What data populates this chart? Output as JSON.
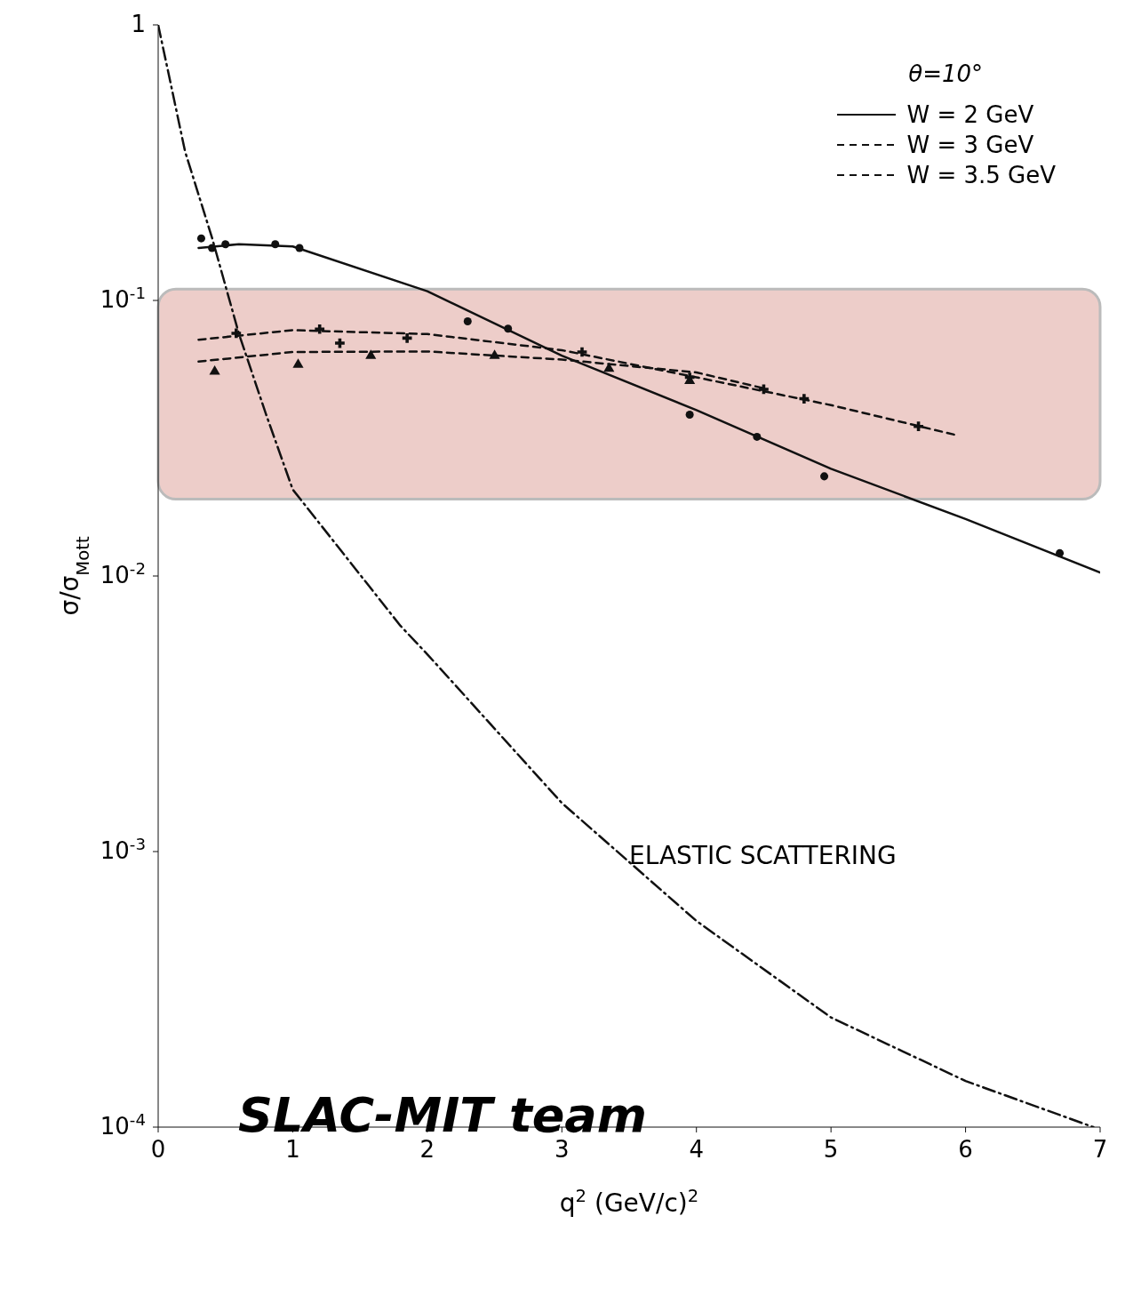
{
  "chart_data": {
    "type": "line",
    "xlabel": "q$^{2}$ (GeV/c)$^{2}$",
    "ylabel": "σ/σ$_{Mott}$",
    "legend_title": "θ=10°",
    "log": "y",
    "xlim": [
      0,
      7
    ],
    "xticks": [
      0,
      1,
      2,
      3,
      4,
      5,
      6,
      7
    ],
    "ylim": [
      0.0001,
      1
    ],
    "yticks": [
      {
        "value": 0.0001,
        "label": "10$^{-4}$"
      },
      {
        "value": 0.001,
        "label": "10$^{-3}$"
      },
      {
        "value": 0.01,
        "label": "10$^{-2}$"
      },
      {
        "value": 0.1,
        "label": "10$^{-1}$"
      },
      1
    ],
    "grid": false,
    "legend": "top right",
    "series": [
      {
        "name": "W = 2 GeV",
        "line_style": "solid",
        "marker": "none",
        "color": "#111111",
        "x": [
          0.3,
          0.6,
          1,
          2,
          3,
          4,
          5,
          6,
          7
        ],
        "values": [
          0.155,
          0.16,
          0.157,
          0.108,
          0.063,
          0.04,
          0.0245,
          0.0161,
          0.0103
        ]
      },
      {
        "name": "W = 3 GeV",
        "line_style": "dashed",
        "marker": "none",
        "color": "#111111",
        "x": [
          0.3,
          1,
          2,
          3,
          4,
          5,
          5.95
        ],
        "values": [
          0.072,
          0.078,
          0.0755,
          0.066,
          0.0526,
          0.0417,
          0.0323
        ]
      },
      {
        "name": "W = 3.5 GeV",
        "line_style": "dashed",
        "marker": "none",
        "color": "#111111",
        "x": [
          0.3,
          1,
          2,
          3,
          4,
          4.5
        ],
        "values": [
          0.06,
          0.065,
          0.0653,
          0.061,
          0.0548,
          0.048
        ]
      },
      {
        "line_style": "dotted",
        "marker": "none",
        "color": "#111111",
        "x": [
          0,
          0.1,
          0.2,
          0.4,
          0.6,
          0.8,
          1,
          1.8,
          2,
          3,
          4,
          5,
          6,
          6.95
        ],
        "values": [
          1,
          0.59,
          0.347,
          0.169,
          0.0757,
          0.0388,
          0.0206,
          0.0066,
          0.0052,
          0.0015,
          0.00056,
          0.00025,
          0.000147,
          0.0001
        ]
      },
      {
        "type": "scatter",
        "marker": "circle",
        "color": "#111111",
        "x": [
          0.32,
          0.4,
          0.5,
          0.87,
          1.05,
          2.3,
          2.6,
          3.95,
          4.45,
          4.95,
          6.7
        ],
        "values": [
          0.168,
          0.155,
          0.16,
          0.16,
          0.155,
          0.084,
          0.079,
          0.0385,
          0.032,
          0.023,
          0.0121
        ]
      },
      {
        "type": "scatter",
        "marker": "cross",
        "color": "#111111",
        "x": [
          0.58,
          1.2,
          1.35,
          1.85,
          3.15,
          3.95,
          4.5,
          4.8,
          5.65
        ],
        "values": [
          0.076,
          0.0787,
          0.07,
          0.073,
          0.065,
          0.0526,
          0.0476,
          0.044,
          0.0349
        ]
      },
      {
        "type": "scatter",
        "marker": "triangle",
        "color": "#111111",
        "x": [
          0.42,
          1.04,
          1.58,
          2.5,
          3.35,
          3.95
        ],
        "values": [
          0.0552,
          0.0585,
          0.063,
          0.063,
          0.0565,
          0.0511
        ]
      }
    ],
    "bands": [
      {
        "axis": "y",
        "from": 0.019,
        "to": 0.11,
        "color": "#e8c0bc"
      }
    ],
    "annotations": [
      {
        "text": "ELASTIC SCATTERING",
        "x": 3.5,
        "y": 0.0009
      },
      "SLAC-MIT team"
    ]
  }
}
